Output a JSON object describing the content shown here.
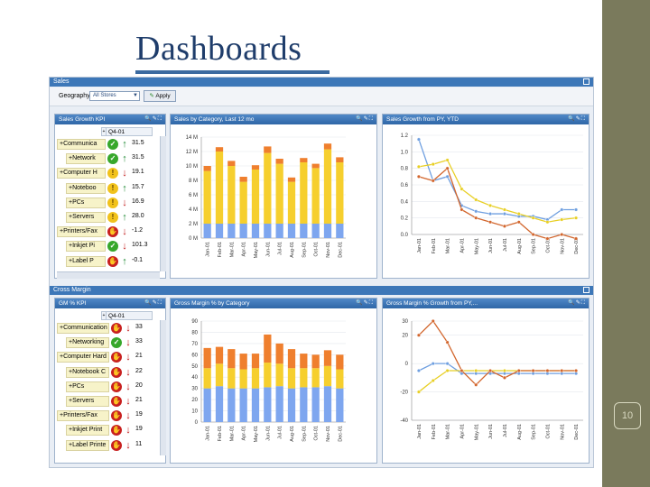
{
  "slide": {
    "title": "Dashboards",
    "number": "10"
  },
  "sales_section": {
    "title": "Sales",
    "geography_label": "Geography",
    "geography_value": "All Stores",
    "apply_label": "Apply"
  },
  "margin_section": {
    "title": "Cross Margin"
  },
  "panels": {
    "sales_kpi_title": "Sales Growth KPI",
    "sales_cat_title": "Sales by Category, Last 12 mo",
    "sales_growth_title": "Sales Growth from PY, YTD",
    "gm_kpi_title": "GM % KPI",
    "gm_cat_title": "Gross Margin % by Category",
    "gm_growth_title": "Gross Margin % Growth from PY,..."
  },
  "sales_kpi": {
    "column_header": "Q4-01",
    "rows": [
      {
        "name": "+Communica",
        "status": "green",
        "trend": "up",
        "value": "31.5"
      },
      {
        "name": "+Network",
        "status": "green",
        "trend": "up",
        "value": "31.5"
      },
      {
        "name": "+Computer H",
        "status": "yellow",
        "trend": "down",
        "value": "19.1"
      },
      {
        "name": "+Noteboo",
        "status": "yellow",
        "trend": "up",
        "value": "15.7"
      },
      {
        "name": "+PCs",
        "status": "yellow",
        "trend": "down",
        "value": "16.9"
      },
      {
        "name": "+Servers",
        "status": "yellow",
        "trend": "up",
        "value": "28.0"
      },
      {
        "name": "+Printers/Fax",
        "status": "red",
        "trend": "down",
        "value": "-1.2"
      },
      {
        "name": "+Inkjet Pi",
        "status": "green",
        "trend": "down",
        "value": "101.3"
      },
      {
        "name": "+Label P",
        "status": "red",
        "trend": "up",
        "value": "-0.1"
      }
    ]
  },
  "gm_kpi": {
    "column_header": "Q4-01",
    "rows": [
      {
        "name": "+Communication",
        "status": "red",
        "trend": "down",
        "value": "33"
      },
      {
        "name": "+Networking",
        "status": "green",
        "trend": "down",
        "value": "33"
      },
      {
        "name": "+Computer Hard",
        "status": "red",
        "trend": "down",
        "value": "21"
      },
      {
        "name": "+Notebook C",
        "status": "red",
        "trend": "down",
        "value": "22"
      },
      {
        "name": "+PCs",
        "status": "red",
        "trend": "down",
        "value": "20"
      },
      {
        "name": "+Servers",
        "status": "red",
        "trend": "down",
        "value": "21"
      },
      {
        "name": "+Printers/Fax",
        "status": "red",
        "trend": "down",
        "value": "19"
      },
      {
        "name": "+Inkjet Print",
        "status": "red",
        "trend": "down",
        "value": "19"
      },
      {
        "name": "+Label Printe",
        "status": "red",
        "trend": "down",
        "value": "11"
      }
    ]
  },
  "colors": {
    "blue": "#7ea6ef",
    "yellow": "#f6cf2e",
    "orange": "#ef7f2e",
    "line_blue": "#6f9fe0",
    "line_yellow": "#e8cf24",
    "line_orange": "#d2662d"
  },
  "chart_data": [
    {
      "type": "bar",
      "stacked": true,
      "categories": [
        "Jan-01",
        "Feb-01",
        "Mar-01",
        "Apr-01",
        "May-01",
        "Jun-01",
        "Jul-01",
        "Aug-01",
        "Sep-01",
        "Oct-01",
        "Nov-01",
        "Dec-01"
      ],
      "yticks": [
        "0 M",
        "2 M",
        "4 M",
        "6 M",
        "8 M",
        "10 M",
        "12 M",
        "14 M"
      ],
      "ylim": [
        0,
        14
      ],
      "series": [
        {
          "values": [
            2.0,
            2.0,
            2.0,
            2.0,
            2.0,
            2.0,
            2.0,
            2.0,
            2.0,
            2.0,
            2.0,
            2.0
          ]
        },
        {
          "values": [
            7.3,
            10.0,
            8.0,
            5.8,
            7.5,
            9.8,
            8.3,
            5.8,
            8.5,
            7.7,
            10.3,
            8.5
          ]
        },
        {
          "values": [
            0.7,
            0.6,
            0.7,
            0.7,
            0.6,
            0.9,
            0.7,
            0.6,
            0.6,
            0.6,
            0.8,
            0.7
          ]
        }
      ]
    },
    {
      "type": "line",
      "categories": [
        "Jan-01",
        "Feb-01",
        "Mar-01",
        "Apr-01",
        "May-01",
        "Jun-01",
        "Jul-01",
        "Aug-01",
        "Sep-01",
        "Oct-01",
        "Nov-01",
        "Dec-01"
      ],
      "yticks": [
        "0.0",
        "0.2",
        "0.4",
        "0.6",
        "0.8",
        "1.0",
        "1.2"
      ],
      "ylim": [
        0,
        1.2
      ],
      "series": [
        {
          "values": [
            1.15,
            0.65,
            0.7,
            0.35,
            0.28,
            0.25,
            0.25,
            0.22,
            0.22,
            0.18,
            0.3,
            0.3
          ]
        },
        {
          "values": [
            0.82,
            0.85,
            0.9,
            0.55,
            0.42,
            0.35,
            0.3,
            0.25,
            0.2,
            0.15,
            0.18,
            0.2
          ]
        },
        {
          "values": [
            0.7,
            0.65,
            0.8,
            0.3,
            0.2,
            0.15,
            0.1,
            0.15,
            0.0,
            -0.05,
            0.0,
            -0.05
          ]
        }
      ]
    },
    {
      "type": "bar",
      "stacked": true,
      "categories": [
        "Jan-01",
        "Feb-01",
        "Mar-01",
        "Apr-01",
        "May-01",
        "Jun-01",
        "Jul-01",
        "Aug-01",
        "Sep-01",
        "Oct-01",
        "Nov-01",
        "Dec-01"
      ],
      "yticks": [
        "0",
        "10",
        "20",
        "30",
        "40",
        "50",
        "60",
        "70",
        "80",
        "90"
      ],
      "ylim": [
        0,
        90
      ],
      "series": [
        {
          "values": [
            30,
            32,
            30,
            30,
            30,
            31,
            32,
            30,
            31,
            31,
            32,
            30
          ]
        },
        {
          "values": [
            18,
            20,
            18,
            17,
            18,
            22,
            20,
            18,
            17,
            17,
            18,
            17
          ]
        },
        {
          "values": [
            18,
            15,
            17,
            14,
            13,
            25,
            18,
            17,
            13,
            12,
            14,
            13
          ]
        }
      ]
    },
    {
      "type": "line",
      "categories": [
        "Jan-01",
        "Feb-01",
        "Mar-01",
        "Apr-01",
        "May-01",
        "Jun-01",
        "Jul-01",
        "Aug-01",
        "Sep-01",
        "Oct-01",
        "Nov-01",
        "Dec-01"
      ],
      "yticks": [
        "-40",
        "-20",
        "0",
        "20",
        "30"
      ],
      "ylim": [
        -40,
        30
      ],
      "series": [
        {
          "values": [
            -5,
            0,
            0,
            -7,
            -7,
            -7,
            -7,
            -7,
            -7,
            -7,
            -7,
            -7
          ]
        },
        {
          "values": [
            -20,
            -12,
            -5,
            -5,
            -5,
            -5,
            -5,
            -5,
            -5,
            -5,
            -5,
            -5
          ]
        },
        {
          "values": [
            20,
            30,
            15,
            -5,
            -15,
            -5,
            -10,
            -5,
            -5,
            -5,
            -5,
            -5
          ]
        }
      ]
    }
  ]
}
